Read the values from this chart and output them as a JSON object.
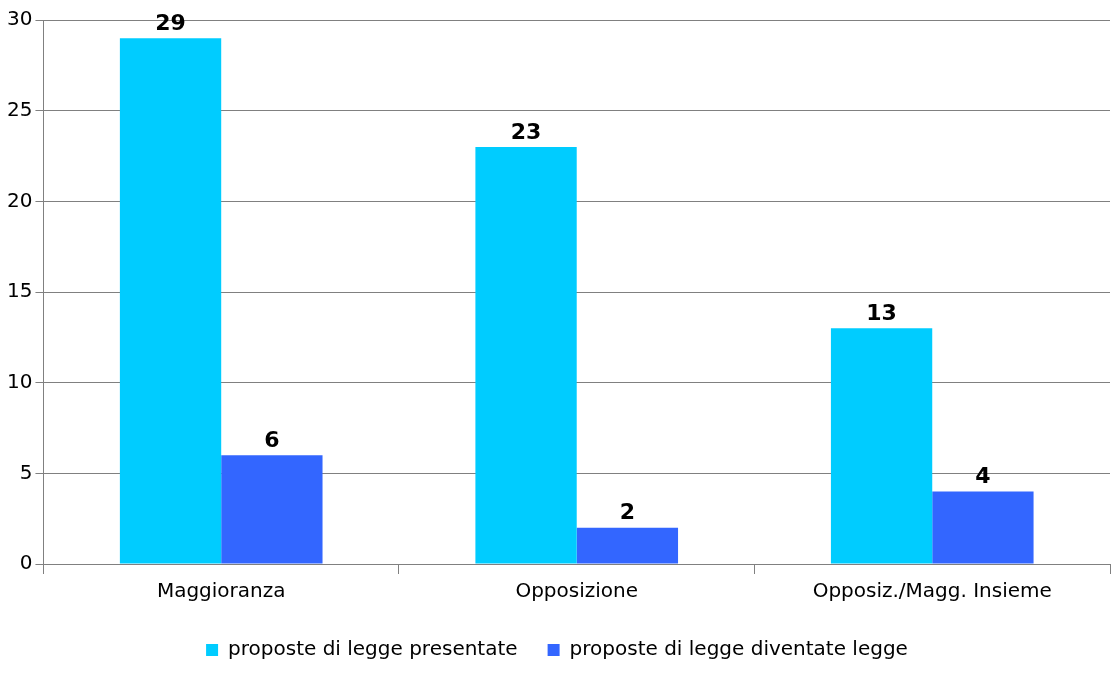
{
  "chart_data": {
    "type": "bar",
    "categories": [
      "Maggioranza",
      "Opposizione",
      "Opposiz./Magg. Insieme"
    ],
    "series": [
      {
        "name": "proposte di legge presentate",
        "color": "#00ccff",
        "values": [
          29,
          23,
          13
        ]
      },
      {
        "name": "proposte di legge diventate legge",
        "color": "#3366ff",
        "values": [
          6,
          2,
          4
        ]
      }
    ],
    "ylim": [
      0,
      30
    ],
    "yticks": [
      0,
      5,
      10,
      15,
      20,
      25,
      30
    ],
    "grid": "y",
    "legend": "bottom",
    "data_labels": true
  }
}
